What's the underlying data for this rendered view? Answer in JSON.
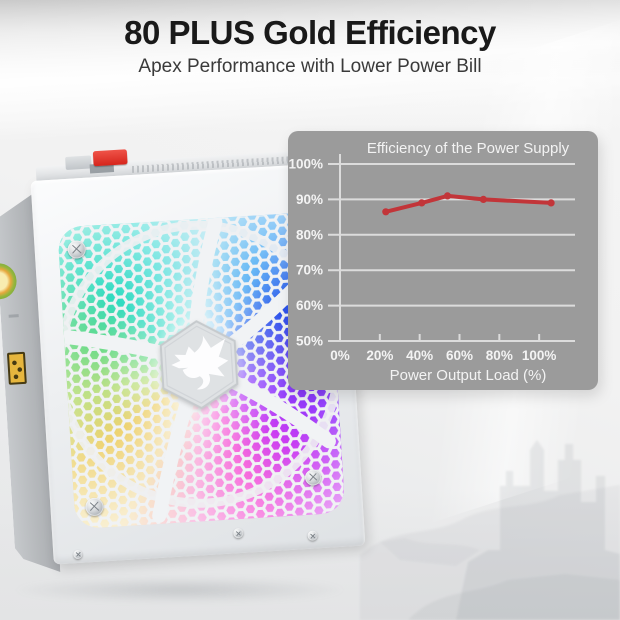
{
  "header": {
    "title": "80 PLUS Gold Efficiency",
    "subtitle": "Apex Performance with Lower Power Bill"
  },
  "chart_data": {
    "type": "line",
    "title": "Efficiency of the Power Supply",
    "xlabel": "Power Output Load (%)",
    "ylabel": "",
    "x_tick_values": [
      0,
      20,
      40,
      60,
      80,
      100
    ],
    "x_tick_labels": [
      "0%",
      "20%",
      "40%",
      "60%",
      "80%",
      "100%"
    ],
    "y_tick_values": [
      50,
      60,
      70,
      80,
      90,
      100
    ],
    "y_tick_labels": [
      "50%",
      "60%",
      "70%",
      "80%",
      "90%",
      "100%"
    ],
    "xlim": [
      0,
      118
    ],
    "ylim": [
      50,
      100
    ],
    "grid": true,
    "legend_position": "none",
    "series": [
      {
        "name": "Efficiency",
        "x": [
          23,
          41,
          54,
          72,
          106
        ],
        "y": [
          86.5,
          89,
          91,
          90,
          89
        ],
        "color": "#c23539",
        "marker": "circle"
      }
    ]
  },
  "chart_style": {
    "panel_bg": "#9b9b9b",
    "grid_color": "#dcdcdc",
    "axis_color": "#dcdcdc",
    "text_color": "#f3f3f3"
  },
  "psu": {
    "brand_logo_icon": "redragon-dragon-logo",
    "center_badge_icon": "hexagon-badge",
    "power_switch_color": "#d6251c",
    "side_badge_icon": "80-plus-gold-badge-partial",
    "cert_mark_icon": "safety-certification-mark-partial",
    "fan_colors": [
      "#bfe9f2",
      "#6db7f0",
      "#2f55e0",
      "#5946e6",
      "#8a3cf0",
      "#c341e8",
      "#ef6fd7",
      "#f6b8e0",
      "#f5e7c0",
      "#ecd379",
      "#bfe08c",
      "#6fd98f",
      "#3bd8c0",
      "#7fe4e0",
      "#bfe9f2"
    ]
  },
  "background": {
    "watermark_icon": "castle-landscape-watermark"
  }
}
